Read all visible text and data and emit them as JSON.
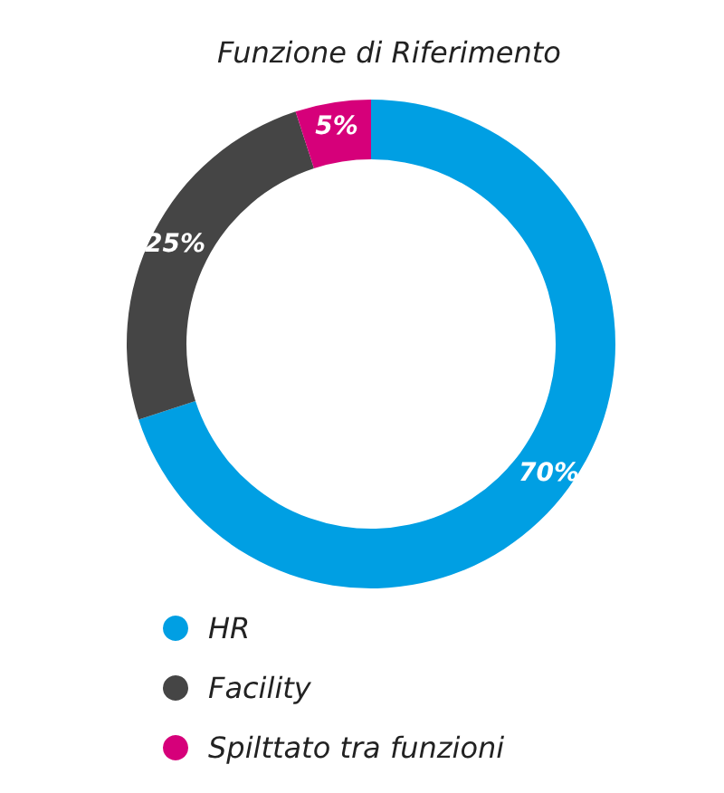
{
  "chart_data": {
    "type": "donut",
    "title": "Funzione di Riferimento",
    "categories": [
      "HR",
      "Facility",
      "Spilttato tra funzioni"
    ],
    "values": [
      70,
      25,
      5
    ],
    "colors": [
      "#009fe3",
      "#454545",
      "#d6007a"
    ],
    "value_labels": [
      "70%",
      "25%",
      "5%"
    ],
    "legend": "bottom left"
  }
}
